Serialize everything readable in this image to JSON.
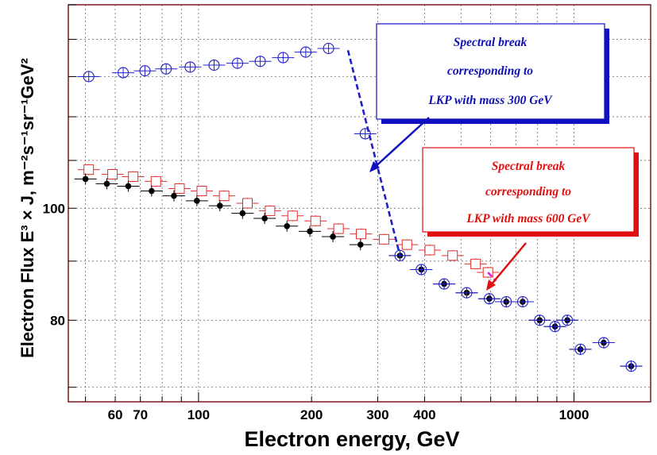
{
  "chart_data": {
    "type": "scatter",
    "title": "",
    "xlabel": "Electron energy, GeV",
    "ylabel": "Electron Flux E³ × J, m⁻²s⁻¹sr⁻¹GeV²",
    "xscale": "log",
    "yscale": "log",
    "xlim": [
      45,
      1600
    ],
    "ylim": [
      68,
      150
    ],
    "grid": true,
    "x_ticks": [
      {
        "value": 60,
        "label": "60"
      },
      {
        "value": 70,
        "label": "70"
      },
      {
        "value": 100,
        "label": "100"
      },
      {
        "value": 200,
        "label": "200"
      },
      {
        "value": 300,
        "label": "300"
      },
      {
        "value": 400,
        "label": "400"
      },
      {
        "value": 1000,
        "label": "1000"
      }
    ],
    "y_ticks": [
      {
        "value": 80,
        "label": "80"
      },
      {
        "value": 100,
        "label": "100"
      }
    ],
    "series": [
      {
        "marker": "open-circle",
        "color": "#2020c8",
        "points": [
          {
            "x": 51,
            "y": 130
          },
          {
            "x": 63,
            "y": 131
          },
          {
            "x": 72,
            "y": 131.5
          },
          {
            "x": 82,
            "y": 132
          },
          {
            "x": 95,
            "y": 132.5
          },
          {
            "x": 110,
            "y": 133
          },
          {
            "x": 127,
            "y": 133.5
          },
          {
            "x": 146,
            "y": 134
          },
          {
            "x": 168,
            "y": 135
          },
          {
            "x": 193,
            "y": 136.5
          },
          {
            "x": 222,
            "y": 137.5
          },
          {
            "x": 250,
            "y": 137
          },
          {
            "x": 262,
            "y": 135.5
          },
          {
            "x": 268,
            "y": 134
          },
          {
            "x": 275,
            "y": 132
          },
          {
            "x": 281,
            "y": 130.5
          },
          {
            "x": 288,
            "y": 129
          },
          {
            "x": 296,
            "y": 127.5
          },
          {
            "x": 304,
            "y": 126
          },
          {
            "x": 312,
            "y": 124.5
          },
          {
            "x": 278,
            "y": 116
          },
          {
            "x": 344,
            "y": 91
          },
          {
            "x": 392,
            "y": 88.5
          },
          {
            "x": 451,
            "y": 86
          },
          {
            "x": 518,
            "y": 84.5
          },
          {
            "x": 595,
            "y": 83.5
          },
          {
            "x": 660,
            "y": 83
          },
          {
            "x": 730,
            "y": 83
          },
          {
            "x": 810,
            "y": 80
          },
          {
            "x": 890,
            "y": 79
          },
          {
            "x": 960,
            "y": 80
          },
          {
            "x": 1040,
            "y": 75.5
          },
          {
            "x": 1200,
            "y": 76.5
          },
          {
            "x": 1420,
            "y": 73
          }
        ]
      },
      {
        "marker": "open-square",
        "color": "#e03030",
        "points": [
          {
            "x": 51,
            "y": 108
          },
          {
            "x": 59,
            "y": 107
          },
          {
            "x": 67,
            "y": 106.5
          },
          {
            "x": 77,
            "y": 105.5
          },
          {
            "x": 89,
            "y": 104
          },
          {
            "x": 102,
            "y": 103.5
          },
          {
            "x": 117,
            "y": 102.5
          },
          {
            "x": 135,
            "y": 101
          },
          {
            "x": 155,
            "y": 99.5
          },
          {
            "x": 178,
            "y": 98.5
          },
          {
            "x": 205,
            "y": 97.5
          },
          {
            "x": 236,
            "y": 96
          },
          {
            "x": 271,
            "y": 95
          },
          {
            "x": 312,
            "y": 94
          },
          {
            "x": 359,
            "y": 93
          },
          {
            "x": 413,
            "y": 92
          },
          {
            "x": 475,
            "y": 91
          },
          {
            "x": 547,
            "y": 89.5
          },
          {
            "x": 590,
            "y": 88
          }
        ]
      },
      {
        "marker": "filled-circle",
        "color": "#000000",
        "points": [
          {
            "x": 50,
            "y": 106
          },
          {
            "x": 57,
            "y": 105
          },
          {
            "x": 65,
            "y": 104.5
          },
          {
            "x": 75,
            "y": 103.5
          },
          {
            "x": 86,
            "y": 102.5
          },
          {
            "x": 99,
            "y": 101.5
          },
          {
            "x": 114,
            "y": 100.5
          },
          {
            "x": 131,
            "y": 99
          },
          {
            "x": 150,
            "y": 98
          },
          {
            "x": 172,
            "y": 96.5
          },
          {
            "x": 198,
            "y": 95.5
          },
          {
            "x": 228,
            "y": 94.5
          },
          {
            "x": 270,
            "y": 93
          },
          {
            "x": 344,
            "y": 91
          },
          {
            "x": 392,
            "y": 88.5
          },
          {
            "x": 451,
            "y": 86
          },
          {
            "x": 518,
            "y": 84.5
          },
          {
            "x": 595,
            "y": 83.5
          },
          {
            "x": 660,
            "y": 83
          },
          {
            "x": 730,
            "y": 83
          },
          {
            "x": 810,
            "y": 80
          },
          {
            "x": 890,
            "y": 79
          },
          {
            "x": 960,
            "y": 80
          },
          {
            "x": 1040,
            "y": 75.5
          },
          {
            "x": 1200,
            "y": 76.5
          },
          {
            "x": 1420,
            "y": 73
          }
        ]
      }
    ],
    "break_lines": [
      {
        "color": "#2020c8",
        "from": {
          "x": 250,
          "y": 137
        },
        "to": {
          "x": 344,
          "y": 91
        }
      },
      {
        "color": "#e020e0",
        "from": {
          "x": 590,
          "y": 88
        },
        "to": {
          "x": 620,
          "y": 86.5
        }
      }
    ],
    "annotations": [
      {
        "color": "#1010b0",
        "lines": [
          "Spectral break",
          "corresponding to",
          "LKP with mass 300 GeV"
        ]
      },
      {
        "color": "#e01010",
        "lines": [
          "Spectral break",
          "corresponding to",
          "LKP with mass 600 GeV"
        ]
      }
    ]
  }
}
